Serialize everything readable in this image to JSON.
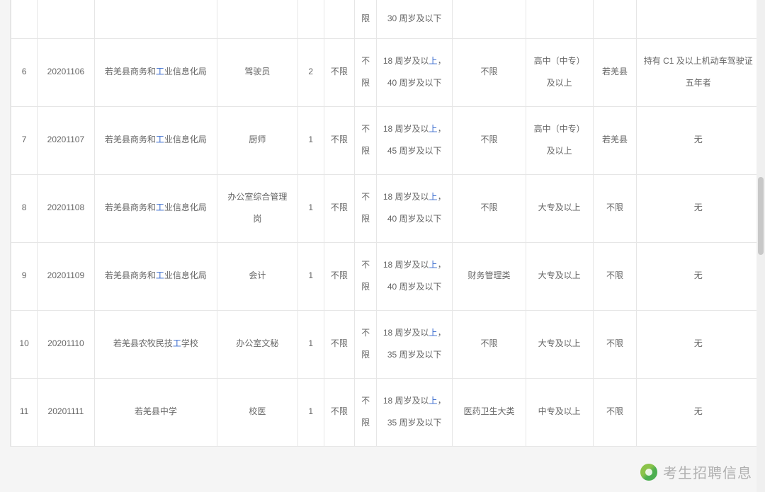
{
  "table": {
    "partial_row": {
      "sex2": "限",
      "age": "30 周岁及以下"
    },
    "rows": [
      {
        "idx": "6",
        "code": "20201106",
        "dept_pre": "若羌县商务和",
        "dept_link": "工",
        "dept_post": "业信息化局",
        "job": "驾驶员",
        "num": "2",
        "sex": "不限",
        "sex2_top": "不",
        "sex2_bot": "限",
        "age_top_pre": "18 周岁及以",
        "age_top_link": "上",
        "age_top_post": "，",
        "age_bot": "40 周岁及以下",
        "major": "不限",
        "edu_top": "高中（中专）",
        "edu_bot": "及以上",
        "place": "若羌县",
        "note_top": "持有 C1 及以上机动车驾驶证",
        "note_bot": "五年者"
      },
      {
        "idx": "7",
        "code": "20201107",
        "dept_pre": "若羌县商务和",
        "dept_link": "工",
        "dept_post": "业信息化局",
        "job": "厨师",
        "num": "1",
        "sex": "不限",
        "sex2_top": "不",
        "sex2_bot": "限",
        "age_top_pre": "18 周岁及以",
        "age_top_link": "上",
        "age_top_post": "，",
        "age_bot": "45 周岁及以下",
        "major": "不限",
        "edu_top": "高中（中专）",
        "edu_bot": "及以上",
        "place": "若羌县",
        "note_top": "无",
        "note_bot": ""
      },
      {
        "idx": "8",
        "code": "20201108",
        "dept_pre": "若羌县商务和",
        "dept_link": "工",
        "dept_post": "业信息化局",
        "job_top": "办公室综合管理",
        "job_bot": "岗",
        "num": "1",
        "sex": "不限",
        "sex2_top": "不",
        "sex2_bot": "限",
        "age_top_pre": "18 周岁及以",
        "age_top_link": "上",
        "age_top_post": "，",
        "age_bot": "40 周岁及以下",
        "major": "不限",
        "edu_top": "大专及以上",
        "edu_bot": "",
        "place": "不限",
        "note_top": "无",
        "note_bot": ""
      },
      {
        "idx": "9",
        "code": "20201109",
        "dept_pre": "若羌县商务和",
        "dept_link": "工",
        "dept_post": "业信息化局",
        "job": "会计",
        "num": "1",
        "sex": "不限",
        "sex2_top": "不",
        "sex2_bot": "限",
        "age_top_pre": "18 周岁及以",
        "age_top_link": "上",
        "age_top_post": "，",
        "age_bot": "40 周岁及以下",
        "major": "财务管理类",
        "edu_top": "大专及以上",
        "edu_bot": "",
        "place": "不限",
        "note_top": "无",
        "note_bot": ""
      },
      {
        "idx": "10",
        "code": "20201110",
        "dept_pre": "若羌县农牧民技",
        "dept_link": "工",
        "dept_post": "学校",
        "job": "办公室文秘",
        "num": "1",
        "sex": "不限",
        "sex2_top": "不",
        "sex2_bot": "限",
        "age_top_pre": "18 周岁及以",
        "age_top_link": "上",
        "age_top_post": "，",
        "age_bot": "35 周岁及以下",
        "major": "不限",
        "edu_top": "大专及以上",
        "edu_bot": "",
        "place": "不限",
        "note_top": "无",
        "note_bot": ""
      },
      {
        "idx": "11",
        "code": "20201111",
        "dept_pre": "若羌县中学",
        "dept_link": "",
        "dept_post": "",
        "job": "校医",
        "num": "1",
        "sex": "不限",
        "sex2_top": "不",
        "sex2_bot": "限",
        "age_top_pre": "18 周岁及以",
        "age_top_link": "上",
        "age_top_post": "，",
        "age_bot": "35 周岁及以下",
        "major": "医药卫生大类",
        "edu_top": "中专及以上",
        "edu_bot": "",
        "place": "不限",
        "note_top": "无",
        "note_bot": ""
      }
    ]
  },
  "watermark": {
    "text": "考生招聘信息"
  },
  "colors": {
    "border": "#e6e6e6",
    "text": "#666666",
    "link": "#3366cc",
    "bg": "#ffffff",
    "page_bg": "#f5f5f5",
    "watermark": "#b0b0b0"
  }
}
